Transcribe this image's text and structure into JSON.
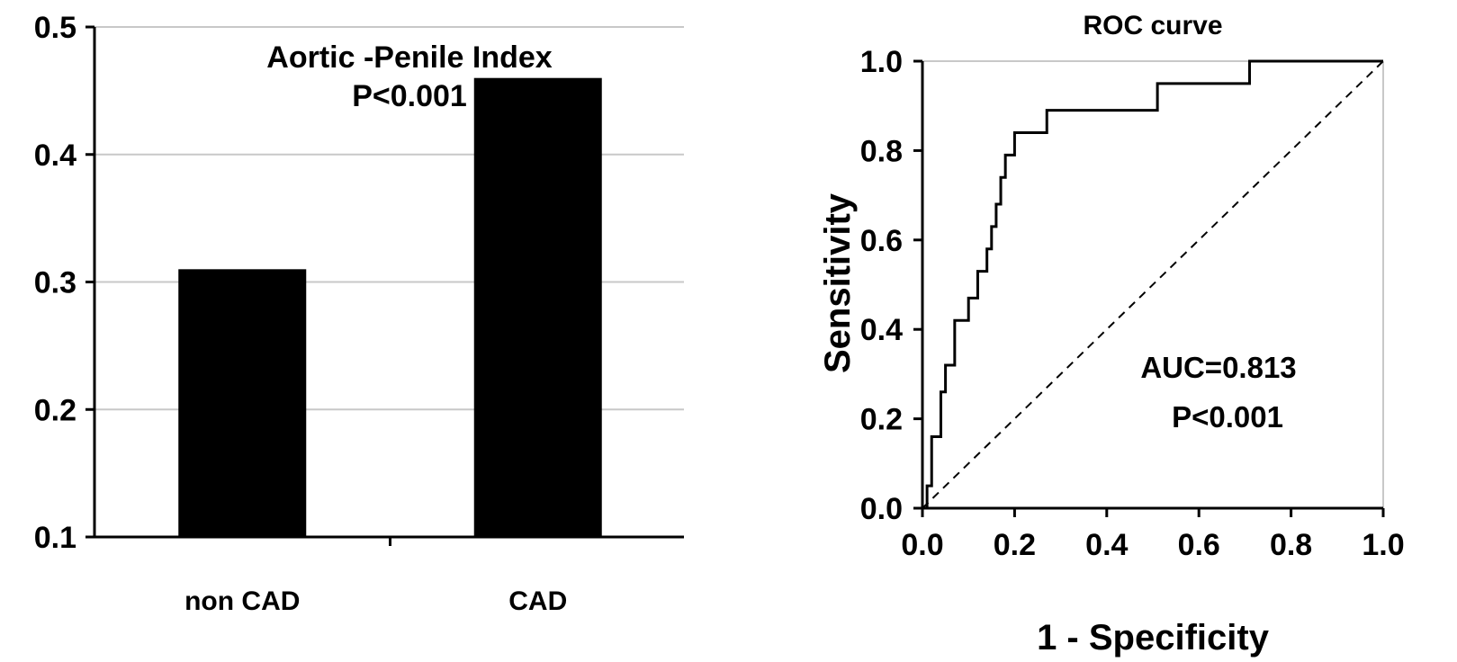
{
  "chart_data": [
    {
      "type": "bar",
      "title": "Aortic -Penile Index",
      "subtitle": "P<0.001",
      "categories": [
        "non CAD",
        "CAD"
      ],
      "values": [
        0.31,
        0.46
      ],
      "ylim": [
        0.1,
        0.5
      ],
      "yticks": [
        "0.1",
        "0.2",
        "0.3",
        "0.4",
        "0.5"
      ],
      "grid": true,
      "bar_color": "#000000"
    },
    {
      "type": "line",
      "title": "ROC curve",
      "xlabel": "1 - Specificity",
      "ylabel": "Sensitivity",
      "xlim": [
        0,
        1
      ],
      "ylim": [
        0,
        1
      ],
      "xticks": [
        "0.0",
        "0.2",
        "0.4",
        "0.6",
        "0.8",
        "1.0"
      ],
      "yticks": [
        "0.0",
        "0.2",
        "0.4",
        "0.6",
        "0.8",
        "1.0"
      ],
      "annotation": [
        "AUC=0.813",
        "P<0.001"
      ],
      "series": [
        {
          "style": "solid",
          "x": [
            0,
            0.01,
            0.01,
            0.02,
            0.02,
            0.04,
            0.04,
            0.05,
            0.05,
            0.07,
            0.07,
            0.1,
            0.1,
            0.12,
            0.12,
            0.14,
            0.14,
            0.15,
            0.15,
            0.16,
            0.16,
            0.17,
            0.17,
            0.18,
            0.18,
            0.2,
            0.2,
            0.27,
            0.27,
            0.51,
            0.51,
            0.71,
            0.71,
            0.78,
            0.78,
            1.0
          ],
          "y": [
            0,
            0,
            0.05,
            0.05,
            0.16,
            0.16,
            0.26,
            0.26,
            0.32,
            0.32,
            0.42,
            0.42,
            0.47,
            0.47,
            0.53,
            0.53,
            0.58,
            0.58,
            0.63,
            0.63,
            0.68,
            0.68,
            0.74,
            0.74,
            0.79,
            0.79,
            0.84,
            0.84,
            0.89,
            0.89,
            0.95,
            0.95,
            1.0,
            1.0,
            1.0,
            1.0
          ]
        },
        {
          "style": "dashed",
          "x": [
            0,
            1
          ],
          "y": [
            0,
            1
          ]
        }
      ]
    }
  ]
}
